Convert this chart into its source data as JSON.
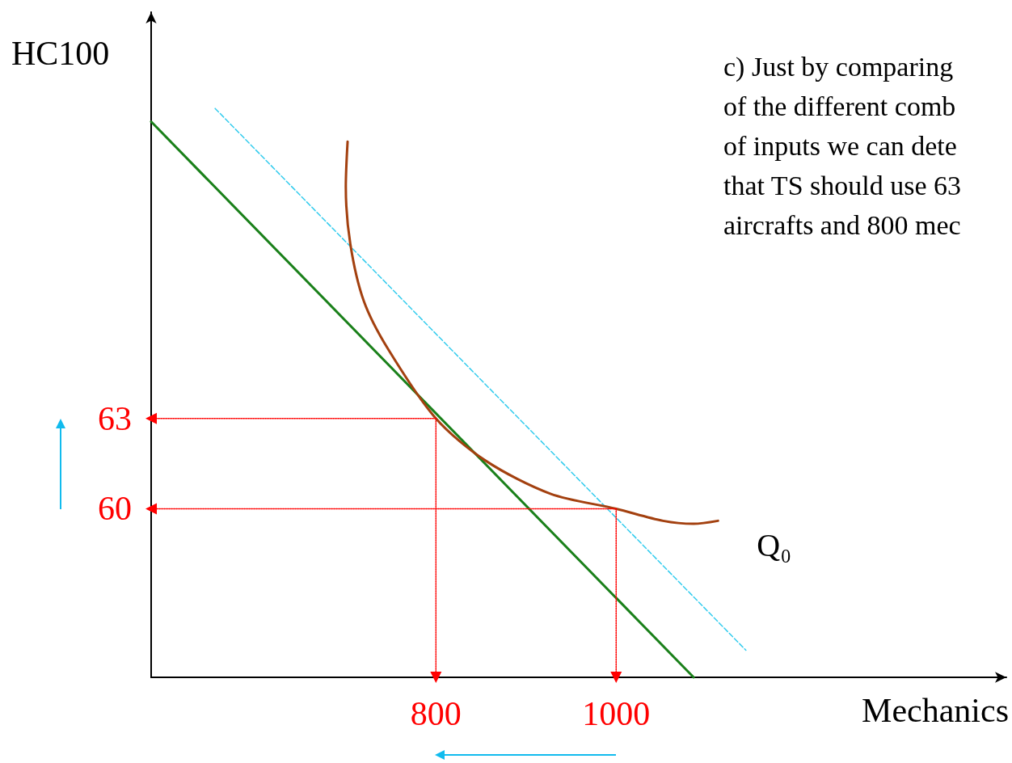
{
  "chart_data": {
    "type": "line",
    "xlabel": "Mechanics",
    "ylabel": "HC100",
    "annotations": [
      "c) Just by comparing\nof the different comb\nof inputs we can dete\nthat TS should use 63\naircrafts and 800 mec"
    ],
    "xlim": [
      484,
      1433
    ],
    "ylim": [
      54.4,
      76.5
    ],
    "xticks": [
      800,
      1000
    ],
    "yticks": [
      60,
      63
    ],
    "grid": false,
    "legend": false,
    "marker": "none",
    "tick_labels": "xy",
    "series": [
      {
        "color": "#1a801a",
        "line_style": "solid",
        "x": [
          484,
          1086
        ],
        "values": [
          72.86,
          54.4
        ]
      },
      {
        "color": "#33ccee",
        "line_style": "dashed",
        "x": [
          555,
          1144
        ],
        "values": [
          73.3,
          55.3
        ]
      },
      {
        "name": "Q₀",
        "color": "#a3400f",
        "line_style": "solid",
        "x": [
          702,
          700,
          705,
          720,
          747,
          800,
          855,
          927,
          1000,
          1052,
          1086,
          1113
        ],
        "values": [
          72.2,
          70.7,
          68.8,
          66.9,
          65.3,
          63,
          61.6,
          60.5,
          60,
          59.6,
          59.5,
          59.6
        ]
      },
      {
        "color": "#ff0000",
        "line_style": "dotted",
        "marker": "triangle",
        "x": [
          800,
          484
        ],
        "values": [
          63,
          63
        ]
      },
      {
        "color": "#ff0000",
        "line_style": "dotted",
        "marker": "triangle",
        "x": [
          800,
          800
        ],
        "values": [
          63,
          54.4
        ]
      },
      {
        "color": "#ff0000",
        "line_style": "dotted",
        "marker": "triangle",
        "x": [
          1000,
          484
        ],
        "values": [
          60,
          60
        ]
      },
      {
        "color": "#ff0000",
        "line_style": "dotted",
        "marker": "triangle",
        "x": [
          1000,
          1000
        ],
        "values": [
          60,
          54.4
        ]
      }
    ]
  }
}
